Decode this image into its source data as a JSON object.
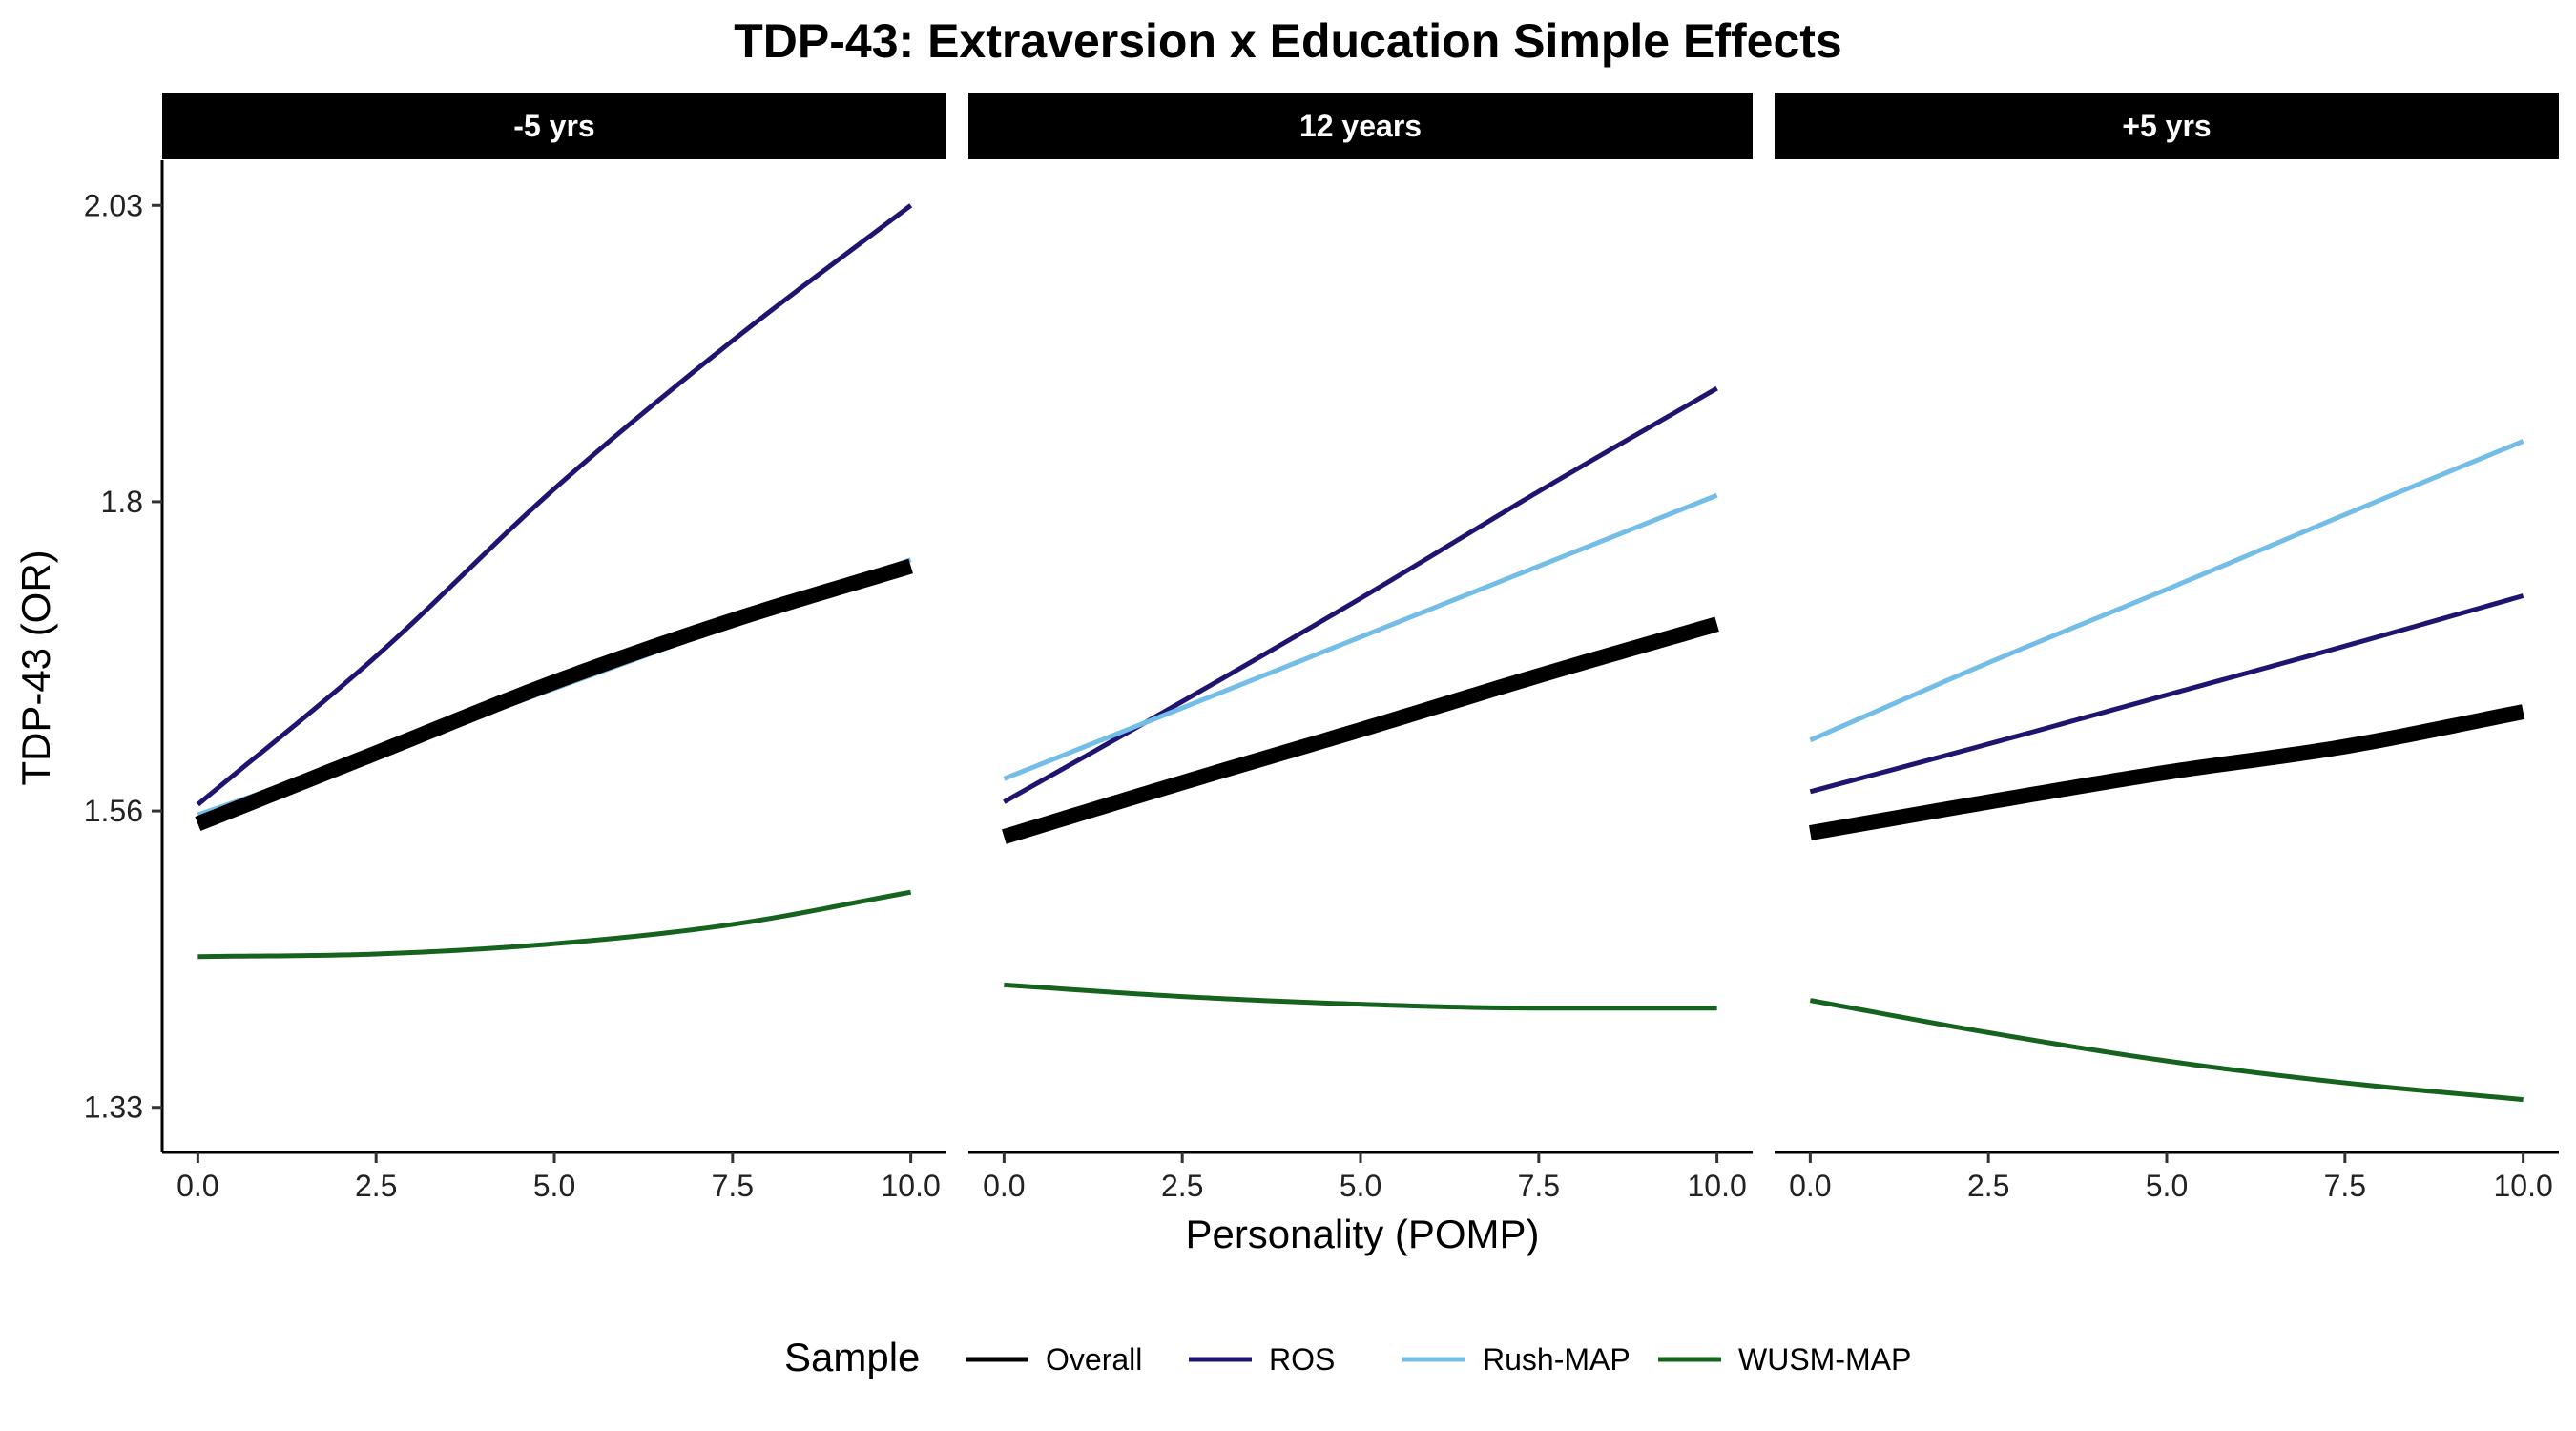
{
  "chart_data": {
    "type": "line",
    "title": "TDP-43: Extraversion x Education Simple Effects",
    "xlabel": "Personality (POMP)",
    "ylabel": "TDP-43 (OR)",
    "xlim": [
      -0.5,
      10.5
    ],
    "ylim": [
      1.295,
      2.065
    ],
    "x_ticks": [
      0,
      2.5,
      5,
      7.5,
      10
    ],
    "x_tick_labels": [
      "0.0",
      "2.5",
      "5.0",
      "7.5",
      "10.0"
    ],
    "y_ticks": [
      1.33,
      1.56,
      1.8,
      2.03
    ],
    "y_tick_labels": [
      "1.33",
      "1.56",
      "1.8",
      "2.03"
    ],
    "grid": false,
    "legend": {
      "title": "Sample",
      "position": "bottom",
      "entries": [
        "Overall",
        "ROS",
        "Rush-MAP",
        "WUSM-MAP"
      ]
    },
    "colors": {
      "Overall": "#000000",
      "ROS": "#1f1470",
      "Rush-MAP": "#74bde6",
      "WUSM-MAP": "#16631f"
    },
    "panels": [
      {
        "label": "-5 yrs",
        "series": [
          {
            "name": "Overall",
            "x": [
              0,
              2.5,
              5,
              7.5,
              10
            ],
            "y": [
              1.55,
              1.605,
              1.66,
              1.708,
              1.75
            ]
          },
          {
            "name": "ROS",
            "x": [
              0,
              2.5,
              5,
              7.5,
              10
            ],
            "y": [
              1.565,
              1.68,
              1.81,
              1.925,
              2.03
            ]
          },
          {
            "name": "Rush-MAP",
            "x": [
              0,
              2.5,
              5,
              7.5,
              10
            ],
            "y": [
              1.557,
              1.605,
              1.655,
              1.705,
              1.755
            ]
          },
          {
            "name": "WUSM-MAP",
            "x": [
              0,
              2.5,
              5,
              7.5,
              10
            ],
            "y": [
              1.447,
              1.449,
              1.457,
              1.472,
              1.497
            ]
          }
        ]
      },
      {
        "label": "12 years",
        "series": [
          {
            "name": "Overall",
            "x": [
              0,
              2.5,
              5,
              7.5,
              10
            ],
            "y": [
              1.54,
              1.582,
              1.623,
              1.665,
              1.705
            ]
          },
          {
            "name": "ROS",
            "x": [
              0,
              2.5,
              5,
              7.5,
              10
            ],
            "y": [
              1.567,
              1.645,
              1.725,
              1.808,
              1.888
            ]
          },
          {
            "name": "Rush-MAP",
            "x": [
              0,
              2.5,
              5,
              7.5,
              10
            ],
            "y": [
              1.585,
              1.64,
              1.695,
              1.75,
              1.805
            ]
          },
          {
            "name": "WUSM-MAP",
            "x": [
              0,
              2.5,
              5,
              7.5,
              10
            ],
            "y": [
              1.425,
              1.416,
              1.41,
              1.407,
              1.407
            ]
          }
        ]
      },
      {
        "label": "+5 yrs",
        "series": [
          {
            "name": "Overall",
            "x": [
              0,
              2.5,
              5,
              7.5,
              10
            ],
            "y": [
              1.543,
              1.567,
              1.59,
              1.61,
              1.637
            ]
          },
          {
            "name": "ROS",
            "x": [
              0,
              2.5,
              5,
              7.5,
              10
            ],
            "y": [
              1.575,
              1.612,
              1.65,
              1.688,
              1.727
            ]
          },
          {
            "name": "Rush-MAP",
            "x": [
              0,
              2.5,
              5,
              7.5,
              10
            ],
            "y": [
              1.615,
              1.675,
              1.732,
              1.79,
              1.847
            ]
          },
          {
            "name": "WUSM-MAP",
            "x": [
              0,
              2.5,
              5,
              7.5,
              10
            ],
            "y": [
              1.413,
              1.388,
              1.366,
              1.349,
              1.336
            ]
          }
        ]
      }
    ]
  }
}
